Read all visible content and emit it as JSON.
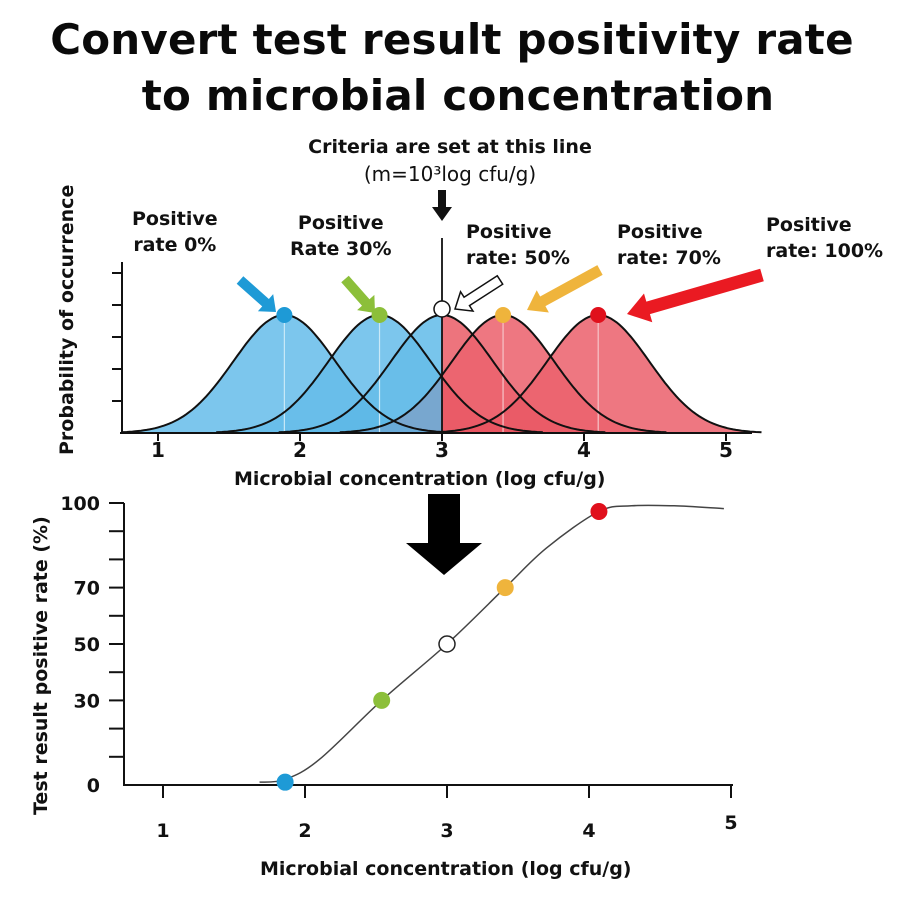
{
  "title": {
    "line1": "Convert test result positivity rate",
    "line2": "to microbial concentration"
  },
  "criteria": {
    "line1": "Criteria are set at this line",
    "line2": "(m=10³log cfu/g)",
    "threshold_log": 3
  },
  "rate_labels": [
    {
      "line1": "Positive",
      "line2": "rate  0%",
      "color": "#1e9ad6"
    },
    {
      "line1": "Positive",
      "line2": "Rate  30%",
      "color": "#8cbf3a"
    },
    {
      "line1": "Positive",
      "line2": "rate: 50%",
      "color": "#111111"
    },
    {
      "line1": "Positive",
      "line2": "rate: 70%",
      "color": "#efb43c"
    },
    {
      "line1": "Positive",
      "line2": "rate: 100%",
      "color": "#d61f26"
    }
  ],
  "chart_data": [
    {
      "type": "area",
      "title": "Distributions of microbial concentration by lot",
      "xlabel": "Microbial concentration (log cfu/g)",
      "ylabel": "Probability of occurrence",
      "x_ticks": [
        "1",
        "2",
        "3",
        "4",
        "5"
      ],
      "xlim": [
        0.75,
        5.15
      ],
      "y_tick_count": 5,
      "threshold_line": 3,
      "grid": false,
      "series": [
        {
          "name": "Positive rate 0%",
          "mean": 1.89,
          "fill": "#8fd0f0",
          "marker": "#1e9ad6"
        },
        {
          "name": "Positive rate 30%",
          "mean": 2.56,
          "fill": "#8fd0f0",
          "marker": "#8cbf3a"
        },
        {
          "name": "Positive rate 50%",
          "mean": 3.0,
          "fill": "split",
          "marker": "#ffffff"
        },
        {
          "name": "Positive rate 70%",
          "mean": 3.43,
          "fill": "#f08a93",
          "marker": "#efb43c"
        },
        {
          "name": "Positive rate 100%",
          "mean": 4.1,
          "fill": "#f08a93",
          "marker": "#e0101c"
        }
      ],
      "fill_below_threshold": "#4db3e6",
      "fill_above_threshold": "#e84a57"
    },
    {
      "type": "line",
      "xlabel": "Microbial concentration (log cfu/g)",
      "ylabel": "Test result positive rate (%)",
      "x_ticks": [
        "1",
        "2",
        "3",
        "4",
        "5"
      ],
      "y_tick_labels": [
        "0",
        "30",
        "50",
        "70",
        "100"
      ],
      "y_minor_ticks": [
        10,
        20,
        40,
        60,
        80,
        90
      ],
      "xlim": [
        1,
        5
      ],
      "ylim": [
        0,
        100
      ],
      "grid": false,
      "curve": {
        "x": [
          1.68,
          1.86,
          2.1,
          2.54,
          3.0,
          3.41,
          3.7,
          4.07,
          4.3,
          4.6,
          4.95
        ],
        "y": [
          1,
          2,
          9,
          30,
          50,
          70,
          84,
          97,
          99,
          99,
          98
        ]
      },
      "points": [
        {
          "x": 1.86,
          "y": 1,
          "color": "#1e9ad6",
          "label": "0%"
        },
        {
          "x": 2.54,
          "y": 30,
          "color": "#8cbf3a",
          "label": "30%"
        },
        {
          "x": 3.0,
          "y": 50,
          "color": "#ffffff",
          "label": "50%"
        },
        {
          "x": 3.41,
          "y": 70,
          "color": "#efb43c",
          "label": "70%"
        },
        {
          "x": 4.07,
          "y": 97,
          "color": "#e0101c",
          "label": "100%"
        }
      ]
    }
  ]
}
